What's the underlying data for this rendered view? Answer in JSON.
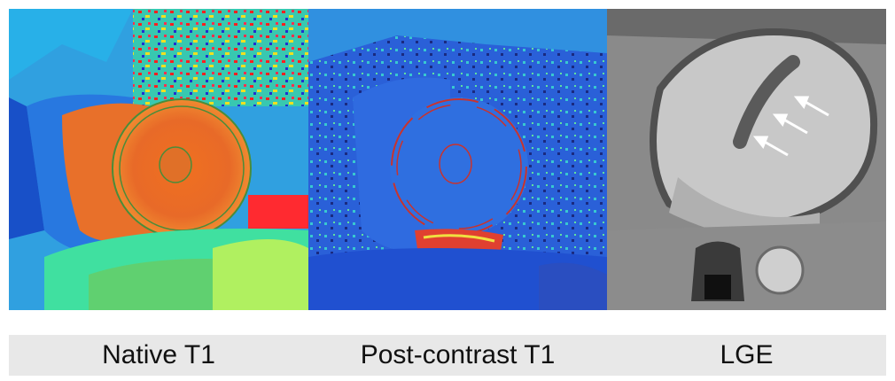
{
  "panels": [
    {
      "id": "native-t1",
      "label": "Native T1",
      "colormap": "jet",
      "contour_color": "#4a8c3a"
    },
    {
      "id": "post-contrast-t1",
      "label": "Post-contrast T1",
      "colormap": "jet",
      "contour_color": "#c8332e"
    },
    {
      "id": "lge",
      "label": "LGE",
      "colormap": "grayscale",
      "annotation_color": "#ffffff",
      "arrow_count": 3
    }
  ]
}
